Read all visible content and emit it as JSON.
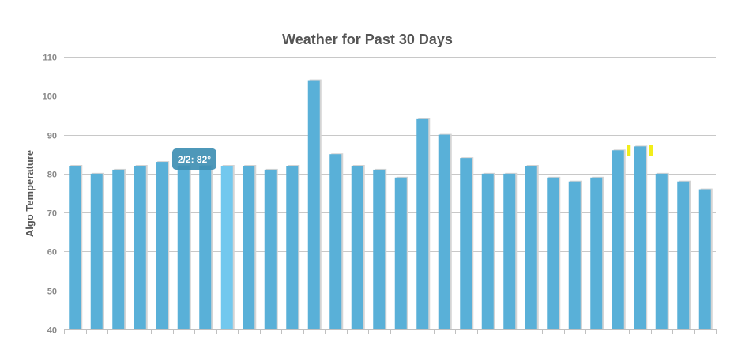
{
  "chart_data": {
    "type": "bar",
    "title": "Weather for Past 30 Days",
    "xlabel": "",
    "ylabel": "Algo Temperature",
    "ylim": [
      40,
      110
    ],
    "yticks": [
      40,
      50,
      60,
      70,
      80,
      90,
      100,
      110
    ],
    "grid": true,
    "values": [
      82,
      80,
      81,
      82,
      83,
      82,
      82,
      82,
      82,
      81,
      82,
      104,
      85,
      82,
      81,
      79,
      94,
      90,
      84,
      80,
      80,
      82,
      79,
      78,
      79,
      86,
      87,
      80,
      78,
      76
    ],
    "highlighted_index": 7,
    "marked_index": 26,
    "tooltip": {
      "index": 7,
      "text": "2/2: 82°"
    },
    "colors": {
      "bar": "#59b0d8",
      "bar_highlight": "#72c8ee",
      "bar_shadow": "#d4d4d4",
      "tooltip_bg": "#3f8fb3",
      "marker": "#f2ee1a"
    }
  }
}
